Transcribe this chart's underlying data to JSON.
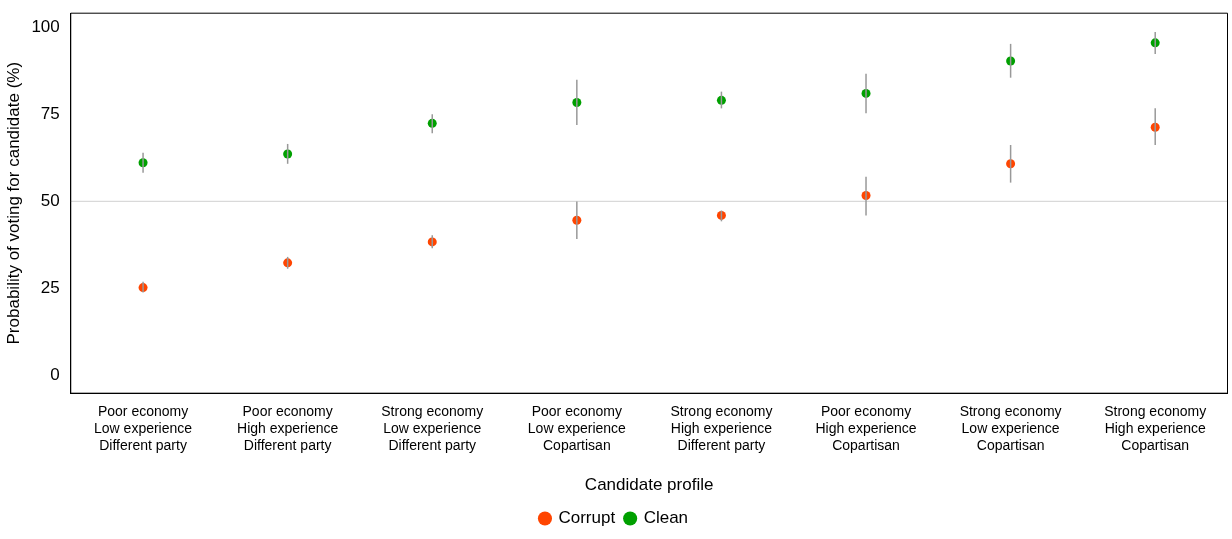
{
  "chart_data": {
    "type": "scatter",
    "xlabel": "Candidate profile",
    "ylabel": "Probability of voting for candidate (%)",
    "categories": [
      "Poor economy\nLow experience\nDifferent party",
      "Poor economy\nHigh experience\nDifferent party",
      "Strong economy\nLow experience\nDifferent party",
      "Poor economy\nLow experience\nCopartisan",
      "Strong economy\nHigh experience\nDifferent party",
      "Poor economy\nHigh experience\nCopartisan",
      "Strong economy\nLow experience\nCopartisan",
      "Strong economy\nHigh experience\nCopartisan"
    ],
    "series": [
      {
        "name": "Corrupt",
        "color": "#ff4500",
        "values": [
          25.3,
          32.4,
          38.4,
          44.6,
          46.0,
          51.7,
          60.8,
          71.3
        ],
        "errors": [
          [
            23.9,
            27.0
          ],
          [
            30.7,
            34.1
          ],
          [
            36.6,
            40.3
          ],
          [
            39.2,
            50.0
          ],
          [
            44.3,
            47.4
          ],
          [
            46.0,
            57.1
          ],
          [
            55.4,
            66.2
          ],
          [
            66.2,
            76.7
          ]
        ]
      },
      {
        "name": "Clean",
        "color": "#00a000",
        "values": [
          61.1,
          63.6,
          72.4,
          78.4,
          79.0,
          81.0,
          90.3,
          95.5
        ],
        "errors": [
          [
            58.2,
            64.0
          ],
          [
            60.8,
            66.5
          ],
          [
            69.6,
            75.0
          ],
          [
            71.9,
            84.9
          ],
          [
            76.7,
            81.5
          ],
          [
            75.3,
            86.6
          ],
          [
            85.5,
            95.2
          ],
          [
            92.3,
            98.6
          ]
        ]
      }
    ],
    "ylim": [
      -5,
      104
    ],
    "yticks": [
      0,
      25,
      50,
      75,
      100
    ],
    "ref_lines": [
      {
        "axis": "y",
        "value": 50,
        "color": "#d9d9d9"
      }
    ],
    "grid": false,
    "legend": "bottom",
    "marker": "circle"
  }
}
